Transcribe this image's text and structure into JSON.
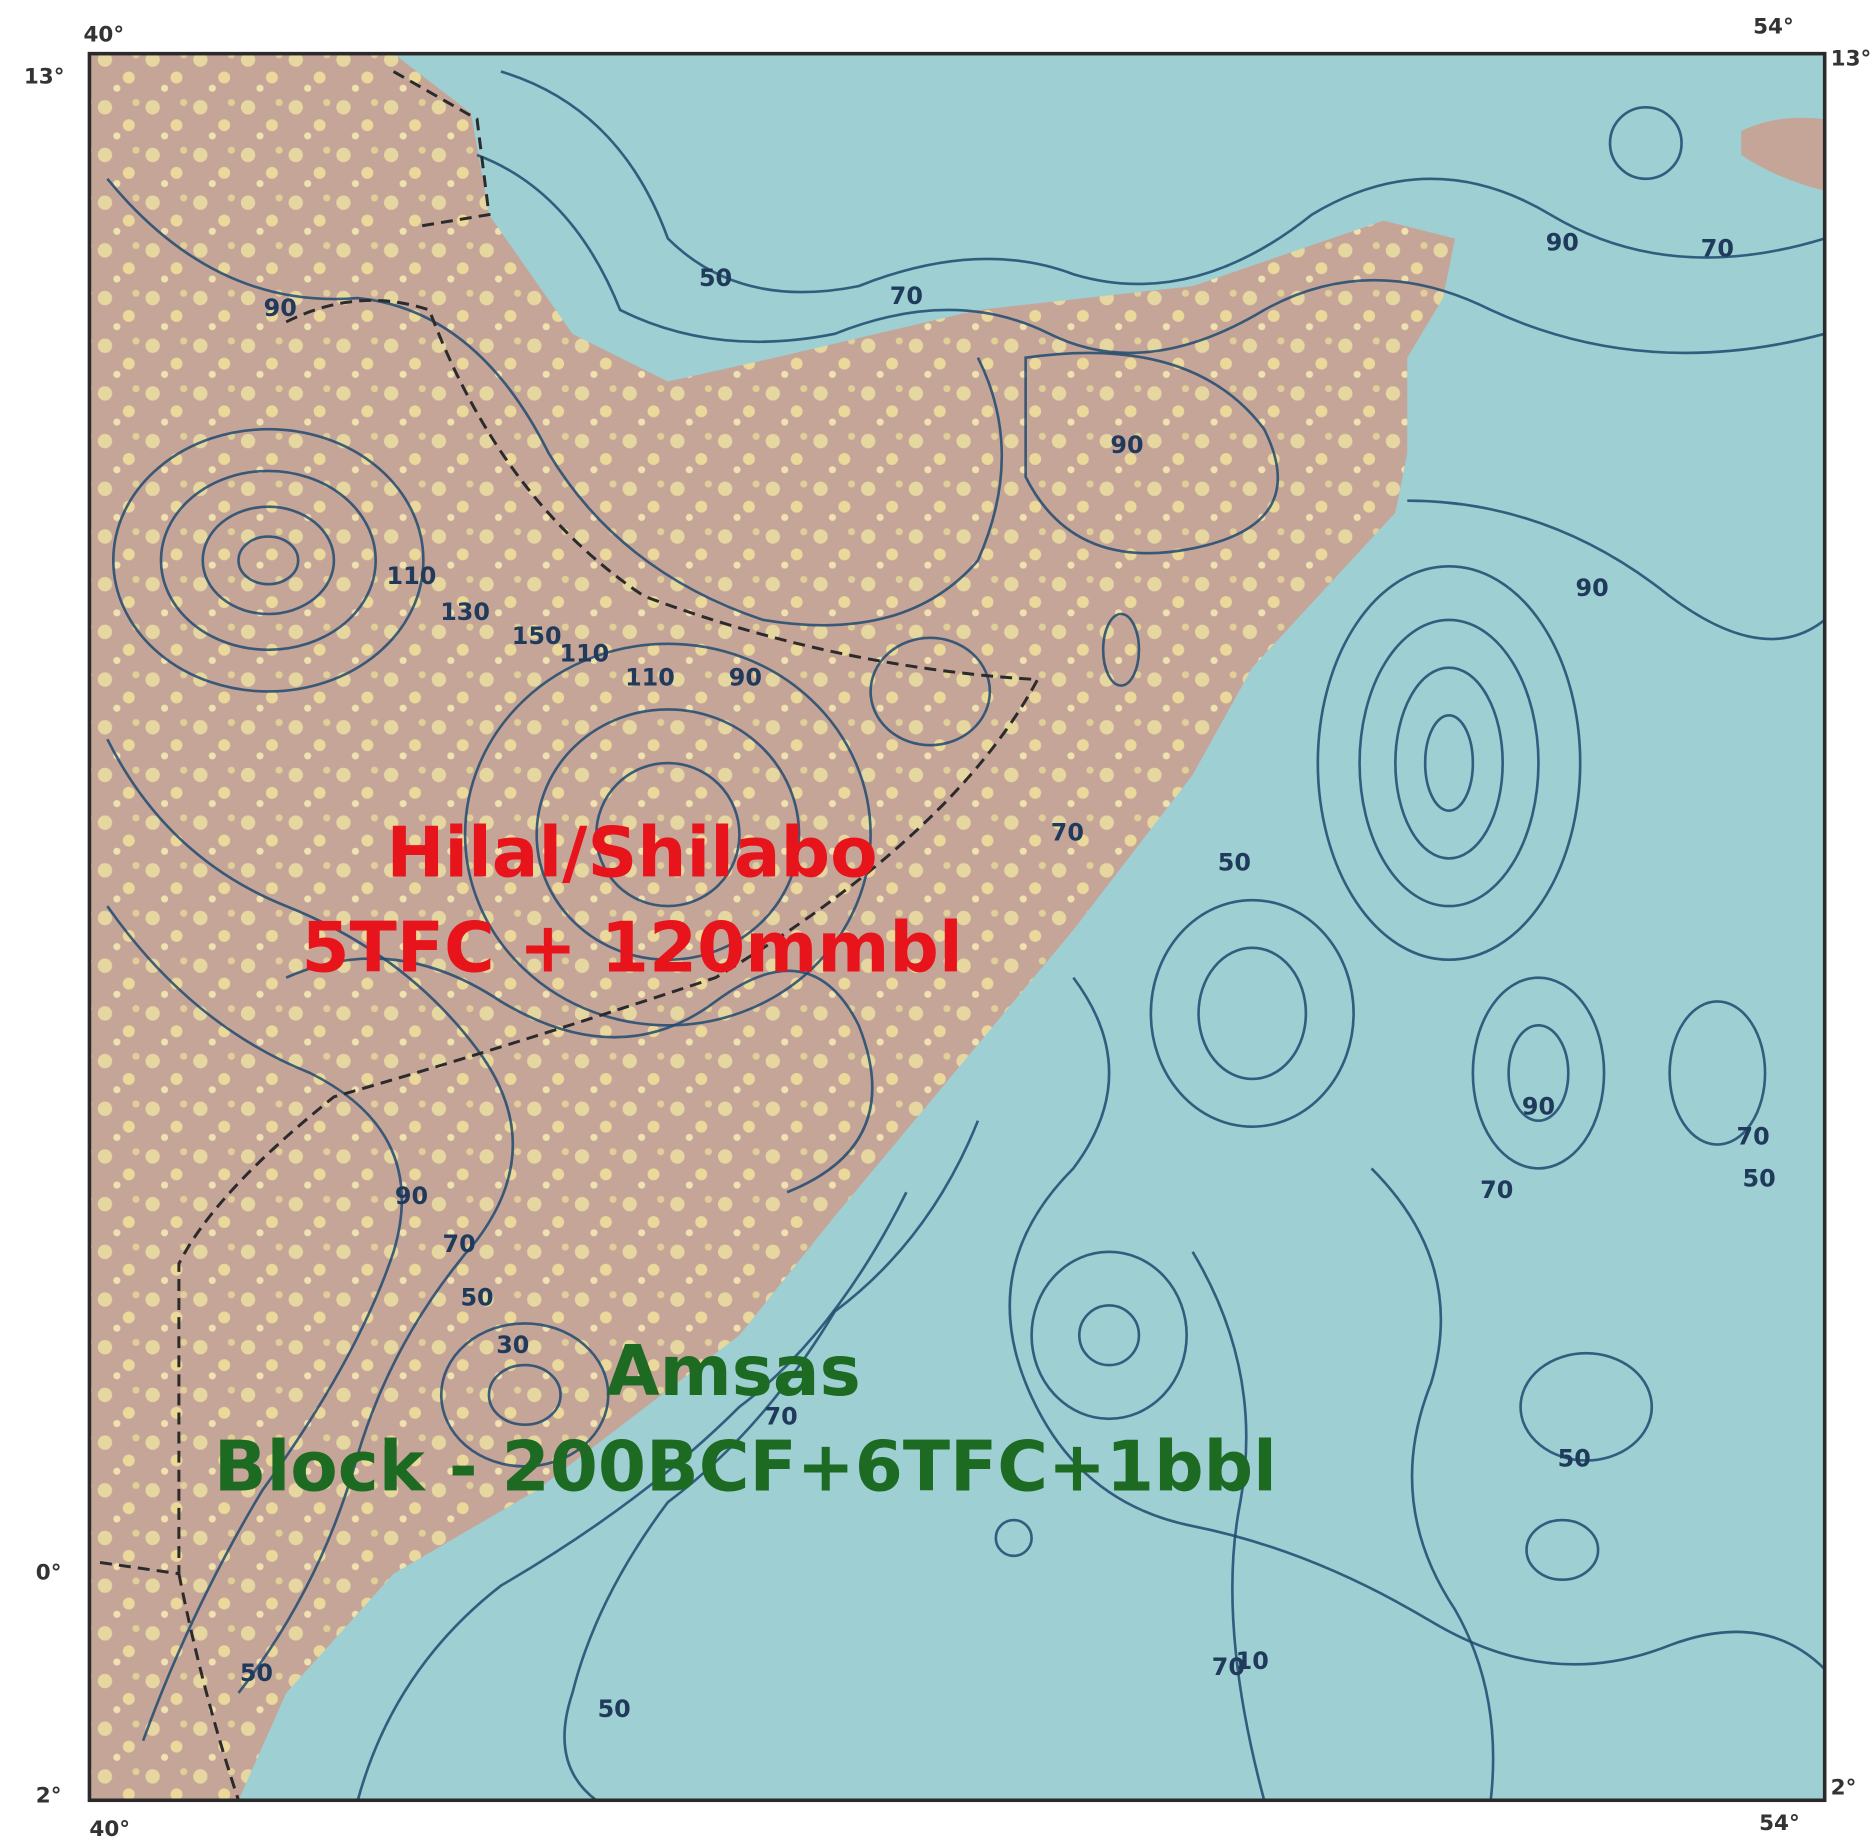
{
  "map": {
    "corner_labels": [
      "40°",
      "54°",
      "13°",
      "13°",
      "0°",
      "2°",
      "2°",
      "40°",
      "54°"
    ],
    "contour_labels": [
      "50",
      "70",
      "90",
      "90",
      "70",
      "90",
      "130",
      "110",
      "150",
      "110",
      "110",
      "90",
      "90",
      "70",
      "50",
      "90",
      "70",
      "70",
      "50",
      "50",
      "30",
      "90",
      "70",
      "50",
      "70",
      "70",
      "50",
      "10",
      "50"
    ],
    "annotations": [
      {
        "lines": [
          "Hilal/Shilabo",
          "5TFC + 120mmbl"
        ],
        "color": "#e8141b"
      },
      {
        "lines": [
          "Amsas",
          "Block - 200BCF+6TFC+1bbl"
        ],
        "color": "#1d6a22"
      }
    ]
  }
}
